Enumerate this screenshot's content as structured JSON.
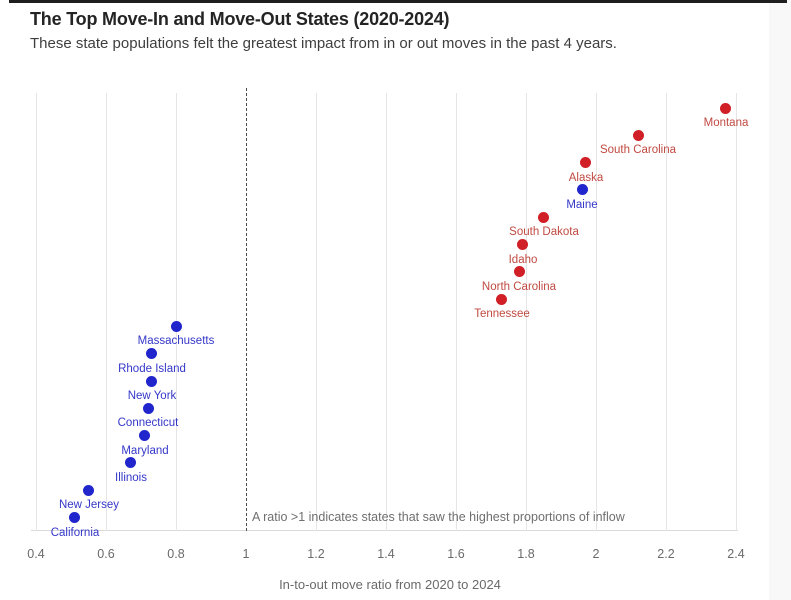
{
  "header": {
    "title": "The Top Move-In and Move-Out States (2020-2024)",
    "subtitle": "These state populations felt the greatest impact from in or out moves in the past 4 years."
  },
  "chart_data": {
    "type": "scatter",
    "title": "The Top Move-In and Move-Out States (2020-2024)",
    "subtitle": "These state populations felt the greatest impact from in or out moves in the past 4 years.",
    "xlabel": "In-to-out move ratio from 2020 to 2024",
    "xlim": [
      0.4,
      2.4
    ],
    "grid": "vertical-only",
    "legend": "none",
    "x_ticks": [
      {
        "value": 0.4,
        "label": "0.4"
      },
      {
        "value": 0.6,
        "label": "0.6"
      },
      {
        "value": 0.8,
        "label": "0.8"
      },
      {
        "value": 1,
        "label": "1"
      },
      {
        "value": 1.2,
        "label": "1.2"
      },
      {
        "value": 1.4,
        "label": "1.4"
      },
      {
        "value": 1.6,
        "label": "1.6"
      },
      {
        "value": 1.8,
        "label": "1.8"
      },
      {
        "value": 2,
        "label": "2"
      },
      {
        "value": 2.2,
        "label": "2.2"
      },
      {
        "value": 2.4,
        "label": "2.4"
      }
    ],
    "reference_line": {
      "x": 1,
      "style": "dashed"
    },
    "annotation": "A ratio >1 indicates states that saw the highest proportions of inflow",
    "points": [
      {
        "state": "Montana",
        "ratio": 2.37,
        "group": "red"
      },
      {
        "state": "South Carolina",
        "ratio": 2.12,
        "group": "red"
      },
      {
        "state": "Alaska",
        "ratio": 1.97,
        "group": "red"
      },
      {
        "state": "Maine",
        "ratio": 1.96,
        "group": "blue"
      },
      {
        "state": "South Dakota",
        "ratio": 1.85,
        "group": "red"
      },
      {
        "state": "Idaho",
        "ratio": 1.79,
        "group": "red"
      },
      {
        "state": "North Carolina",
        "ratio": 1.78,
        "group": "red"
      },
      {
        "state": "Tennessee",
        "ratio": 1.73,
        "group": "red"
      },
      {
        "state": "Massachusetts",
        "ratio": 0.8,
        "group": "blue"
      },
      {
        "state": "Rhode Island",
        "ratio": 0.73,
        "group": "blue"
      },
      {
        "state": "New York",
        "ratio": 0.73,
        "group": "blue"
      },
      {
        "state": "Connecticut",
        "ratio": 0.72,
        "group": "blue"
      },
      {
        "state": "Maryland",
        "ratio": 0.71,
        "group": "blue"
      },
      {
        "state": "Illinois",
        "ratio": 0.67,
        "group": "blue"
      },
      {
        "state": "New Jersey",
        "ratio": 0.55,
        "group": "blue"
      },
      {
        "state": "California",
        "ratio": 0.51,
        "group": "blue"
      }
    ]
  },
  "colors": {
    "red_dot": "#d01f26",
    "red_label": "#c04a42",
    "blue_dot": "#2126cc",
    "blue_label": "#3437c8",
    "gridline": "#e5e5e5",
    "axis_line": "#d9d9d9",
    "reference_line": "#4c4c4c",
    "tick_label": "#6a6a6a",
    "axis_title": "#6a6a6a",
    "annotation": "#6f6f6f",
    "title": "#242424",
    "subtitle": "#3e3e3e",
    "top_border": "#1e1e1e",
    "right_strip": "#f8f8f8"
  }
}
